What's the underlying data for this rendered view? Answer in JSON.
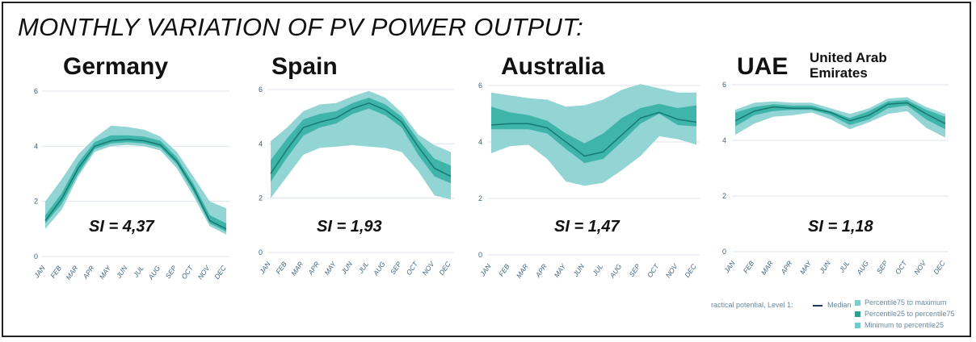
{
  "title": "MONTHLY VARIATION OF PV POWER OUTPUT:",
  "colors": {
    "outer_band": "#93d4d5",
    "inner_band": "#3fb5aa",
    "median": "#177d72",
    "grid": "#dce6ec",
    "tick_text": "#3d6480"
  },
  "legend": {
    "prefix": "ractical potential, Level 1:",
    "median": "Median",
    "items": [
      {
        "label": "Percentile75 to maximum",
        "color": "#7ecccd"
      },
      {
        "label": "Percentile25 to percentile75",
        "color": "#2f9e92"
      },
      {
        "label": "Minimum to percentile25",
        "color": "#74cac8"
      }
    ]
  },
  "chart_data": [
    {
      "type": "area",
      "title": "Germany",
      "annotation": "SI = 4,37",
      "x": [
        "JAN",
        "FEB",
        "MAR",
        "APR",
        "MAY",
        "JUN",
        "JUL",
        "AUG",
        "SEP",
        "OCT",
        "NOV",
        "DEC"
      ],
      "yticks": [
        0,
        2,
        4,
        6
      ],
      "ylim": [
        0,
        6
      ],
      "series": {
        "min": [
          1.0,
          1.7,
          2.9,
          3.8,
          4.0,
          4.05,
          4.0,
          3.85,
          3.2,
          2.2,
          1.1,
          0.8
        ],
        "p25": [
          1.2,
          1.9,
          3.0,
          3.9,
          4.1,
          4.15,
          4.1,
          3.95,
          3.35,
          2.35,
          1.2,
          0.9
        ],
        "median": [
          1.3,
          2.1,
          3.2,
          4.0,
          4.2,
          4.25,
          4.2,
          4.05,
          3.45,
          2.5,
          1.3,
          1.0
        ],
        "p75": [
          1.5,
          2.3,
          3.4,
          4.15,
          4.4,
          4.4,
          4.35,
          4.2,
          3.6,
          2.65,
          1.5,
          1.2
        ],
        "max": [
          2.0,
          2.8,
          3.7,
          4.3,
          4.75,
          4.7,
          4.6,
          4.35,
          3.8,
          2.9,
          2.0,
          1.75
        ]
      }
    },
    {
      "type": "area",
      "title": "Spain",
      "annotation": "SI = 1,93",
      "x": [
        "JAN",
        "FEB",
        "MAR",
        "APR",
        "MAY",
        "JUN",
        "JUL",
        "AUG",
        "SEP",
        "OCT",
        "NOV",
        "DEC"
      ],
      "yticks": [
        0,
        2,
        4,
        6
      ],
      "ylim": [
        0,
        6
      ],
      "series": {
        "min": [
          2.0,
          2.8,
          3.6,
          3.85,
          3.9,
          3.95,
          3.9,
          3.85,
          3.7,
          3.0,
          2.1,
          1.95
        ],
        "p25": [
          2.6,
          3.5,
          4.3,
          4.6,
          4.75,
          5.1,
          5.3,
          5.05,
          4.6,
          3.6,
          2.8,
          2.55
        ],
        "median": [
          2.9,
          3.8,
          4.6,
          4.8,
          4.95,
          5.3,
          5.5,
          5.25,
          4.8,
          3.9,
          3.1,
          2.8
        ],
        "p75": [
          3.4,
          4.2,
          4.9,
          5.1,
          5.2,
          5.5,
          5.7,
          5.45,
          5.0,
          4.15,
          3.45,
          3.2
        ],
        "max": [
          4.1,
          4.6,
          5.2,
          5.45,
          5.5,
          5.75,
          5.95,
          5.7,
          5.15,
          4.35,
          3.95,
          3.7
        ]
      }
    },
    {
      "type": "area",
      "title": "Australia",
      "annotation": "SI = 1,47",
      "x": [
        "JAN",
        "FEB",
        "MAR",
        "APR",
        "MAY",
        "JUN",
        "JUL",
        "AUG",
        "SEP",
        "OCT",
        "NOV",
        "DEC"
      ],
      "yticks": [
        0,
        2,
        4,
        6
      ],
      "ylim": [
        0,
        6
      ],
      "series": {
        "min": [
          3.6,
          3.85,
          3.9,
          3.4,
          2.6,
          2.45,
          2.55,
          3.0,
          3.5,
          4.2,
          4.1,
          3.9
        ],
        "p25": [
          4.45,
          4.45,
          4.45,
          4.3,
          3.75,
          3.25,
          3.4,
          4.0,
          4.65,
          5.0,
          4.6,
          4.55
        ],
        "median": [
          4.6,
          4.65,
          4.65,
          4.5,
          4.0,
          3.5,
          3.65,
          4.25,
          4.85,
          5.05,
          4.8,
          4.7
        ],
        "p75": [
          5.25,
          5.05,
          4.95,
          4.75,
          4.3,
          3.95,
          4.3,
          4.85,
          5.2,
          5.35,
          5.2,
          5.3
        ],
        "max": [
          5.75,
          5.65,
          5.55,
          5.5,
          5.25,
          5.3,
          5.5,
          5.85,
          6.05,
          5.9,
          5.75,
          5.75
        ]
      }
    },
    {
      "type": "area",
      "title": "UAE",
      "subtitle": "United Arab Emirates",
      "annotation": "SI = 1,18",
      "x": [
        "JAN",
        "FEB",
        "MAR",
        "APR",
        "MAY",
        "JUN",
        "JUL",
        "AUG",
        "SEP",
        "OCT",
        "NOV",
        "DEC"
      ],
      "yticks": [
        0,
        2,
        4,
        6
      ],
      "ylim": [
        0,
        6
      ],
      "series": {
        "min": [
          4.2,
          4.6,
          4.85,
          4.9,
          5.0,
          4.75,
          4.4,
          4.65,
          4.95,
          5.05,
          4.45,
          4.1
        ],
        "p25": [
          4.5,
          4.9,
          5.05,
          5.1,
          5.1,
          4.9,
          4.55,
          4.75,
          5.15,
          5.25,
          4.75,
          4.4
        ],
        "median": [
          4.7,
          5.05,
          5.2,
          5.15,
          5.15,
          5.0,
          4.7,
          4.9,
          5.3,
          5.35,
          4.95,
          4.6
        ],
        "p75": [
          5.0,
          5.2,
          5.3,
          5.25,
          5.25,
          5.05,
          4.8,
          5.05,
          5.4,
          5.45,
          5.1,
          4.85
        ],
        "max": [
          5.1,
          5.35,
          5.4,
          5.35,
          5.35,
          5.15,
          4.95,
          5.15,
          5.5,
          5.55,
          5.2,
          4.95
        ]
      }
    }
  ]
}
